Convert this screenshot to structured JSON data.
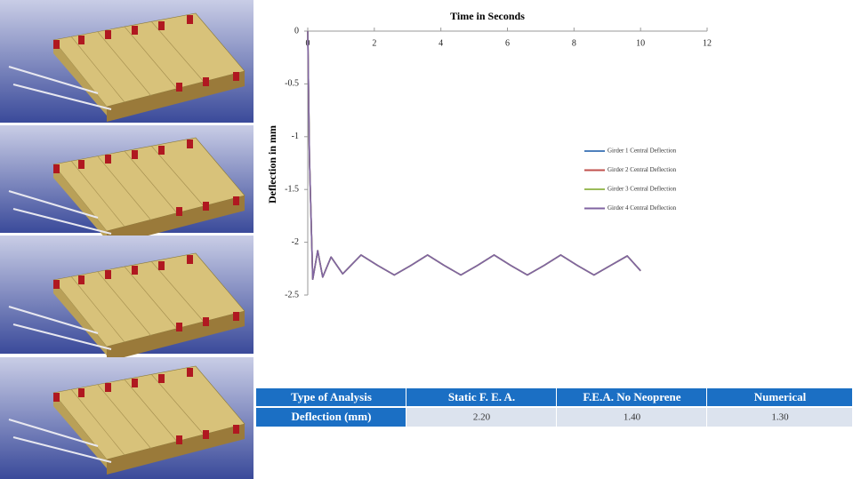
{
  "chart_data": {
    "type": "line",
    "title": "Time in Seconds",
    "y_label": "Deflection in mm",
    "x": [
      0,
      0.05,
      0.15,
      0.3,
      0.45,
      0.7,
      1.05,
      1.6,
      2.1,
      2.6,
      3.1,
      3.6,
      4.1,
      4.6,
      5.1,
      5.6,
      6.1,
      6.6,
      7.1,
      7.6,
      8.1,
      8.6,
      9.1,
      9.6,
      10.0
    ],
    "series": [
      {
        "name": "Girder 1 Central Deflection",
        "color": "#4f81bd",
        "values": [
          0,
          -1.2,
          -2.35,
          -2.08,
          -2.33,
          -2.14,
          -2.3,
          -2.12,
          -2.22,
          -2.31,
          -2.22,
          -2.12,
          -2.22,
          -2.31,
          -2.22,
          -2.12,
          -2.22,
          -2.31,
          -2.22,
          -2.12,
          -2.22,
          -2.31,
          -2.22,
          -2.13,
          -2.27
        ]
      },
      {
        "name": "Girder 2 Central Deflection",
        "color": "#c0504d",
        "values": [
          0,
          -1.2,
          -2.35,
          -2.08,
          -2.33,
          -2.14,
          -2.3,
          -2.12,
          -2.22,
          -2.31,
          -2.22,
          -2.12,
          -2.22,
          -2.31,
          -2.22,
          -2.12,
          -2.22,
          -2.31,
          -2.22,
          -2.12,
          -2.22,
          -2.31,
          -2.22,
          -2.13,
          -2.27
        ]
      },
      {
        "name": "Girder 3 Central Deflection",
        "color": "#9bbb59",
        "values": [
          0,
          -1.2,
          -2.35,
          -2.08,
          -2.33,
          -2.14,
          -2.3,
          -2.12,
          -2.22,
          -2.31,
          -2.22,
          -2.12,
          -2.22,
          -2.31,
          -2.22,
          -2.12,
          -2.22,
          -2.31,
          -2.22,
          -2.12,
          -2.22,
          -2.31,
          -2.22,
          -2.13,
          -2.27
        ]
      },
      {
        "name": "Girder 4 Central Deflection",
        "color": "#8064a2",
        "values": [
          0,
          -1.2,
          -2.35,
          -2.08,
          -2.33,
          -2.14,
          -2.3,
          -2.12,
          -2.22,
          -2.31,
          -2.22,
          -2.12,
          -2.22,
          -2.31,
          -2.22,
          -2.12,
          -2.22,
          -2.31,
          -2.22,
          -2.12,
          -2.22,
          -2.31,
          -2.22,
          -2.13,
          -2.27
        ]
      }
    ],
    "xlim": [
      0,
      12
    ],
    "xticks": [
      0,
      2,
      4,
      6,
      8,
      10,
      12
    ],
    "ylim": [
      -2.5,
      0
    ],
    "yticks": [
      0,
      -0.5,
      -1,
      -1.5,
      -2,
      -2.5
    ],
    "grid": false
  },
  "table": {
    "header": [
      "Type of Analysis",
      "Static F. E. A.",
      "F.E.A. No Neoprene",
      "Numerical"
    ],
    "rows": [
      [
        "Deflection (mm)",
        "2.20",
        "1.40",
        "1.30"
      ]
    ]
  }
}
